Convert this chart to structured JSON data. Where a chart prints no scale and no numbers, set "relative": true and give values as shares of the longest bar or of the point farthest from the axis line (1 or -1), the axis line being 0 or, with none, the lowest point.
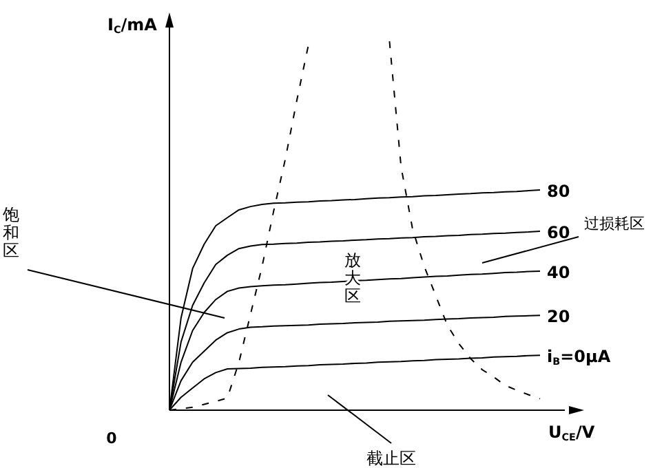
{
  "chart_data": {
    "type": "line",
    "relative": true,
    "xlabel": "U$_{CE}$/V",
    "ylabel": "I$_{C}$/mA",
    "grid": false,
    "categories": [
      null,
      null,
      null,
      null,
      null,
      null,
      null,
      null,
      null,
      null,
      null,
      null,
      null,
      null,
      null,
      null,
      null,
      null,
      null,
      null,
      null,
      null,
      null,
      null,
      null,
      null,
      null,
      null,
      null,
      null,
      null,
      null,
      null
    ],
    "series": [
      {
        "name": "80",
        "color": "#000000",
        "line_style": "solid",
        "values": [
          0,
          0.25,
          0.384,
          0.45,
          0.5,
          0.522,
          0.543,
          0.552,
          0.558,
          0.561,
          0.562,
          0.564,
          0.565,
          0.567,
          0.568,
          0.57,
          0.571,
          0.573,
          0.575,
          0.576,
          0.578,
          0.579,
          0.581,
          0.582,
          0.584,
          0.586,
          0.587,
          0.589,
          0.59,
          0.592,
          0.593,
          0.595,
          0.597
        ]
      },
      {
        "name": "60",
        "color": "#000000",
        "line_style": "solid",
        "values": [
          0,
          0.185,
          0.284,
          0.345,
          0.395,
          0.42,
          0.438,
          0.445,
          0.449,
          0.45,
          0.452,
          0.453,
          0.455,
          0.456,
          0.458,
          0.459,
          0.461,
          0.462,
          0.464,
          0.465,
          0.467,
          0.468,
          0.47,
          0.471,
          0.473,
          0.474,
          0.476,
          0.477,
          0.479,
          0.48,
          0.482,
          0.483,
          0.485
        ]
      },
      {
        "name": "40",
        "color": "#000000",
        "line_style": "solid",
        "values": [
          0,
          0.13,
          0.216,
          0.265,
          0.3,
          0.322,
          0.331,
          0.335,
          0.337,
          0.339,
          0.34,
          0.342,
          0.344,
          0.346,
          0.347,
          0.349,
          0.351,
          0.352,
          0.354,
          0.356,
          0.357,
          0.359,
          0.361,
          0.363,
          0.364,
          0.366,
          0.368,
          0.369,
          0.371,
          0.373,
          0.374,
          0.376,
          0.377
        ]
      },
      {
        "name": "20",
        "color": "#000000",
        "line_style": "solid",
        "values": [
          0,
          0.08,
          0.13,
          0.16,
          0.19,
          0.21,
          0.22,
          0.225,
          0.226,
          0.228,
          0.229,
          0.23,
          0.231,
          0.233,
          0.234,
          0.235,
          0.237,
          0.238,
          0.239,
          0.241,
          0.242,
          0.243,
          0.244,
          0.246,
          0.247,
          0.248,
          0.25,
          0.251,
          0.252,
          0.254,
          0.255,
          0.256,
          0.257
        ]
      },
      {
        "name": "i$_{B}$=0μA",
        "color": "#000000",
        "line_style": "solid",
        "values": [
          0,
          0.035,
          0.06,
          0.085,
          0.102,
          0.112,
          0.113,
          0.114,
          0.116,
          0.117,
          0.118,
          0.12,
          0.121,
          0.123,
          0.124,
          0.125,
          0.127,
          0.128,
          0.13,
          0.131,
          0.132,
          0.134,
          0.135,
          0.137,
          0.138,
          0.139,
          0.141,
          0.142,
          0.144,
          0.145,
          0.146,
          0.148,
          0.149
        ]
      },
      {
        "color": "#000000",
        "line_style": "dashed",
        "values": [
          0,
          0.004,
          0.008,
          0.016,
          0.024,
          0.033,
          0.13,
          0.26,
          0.39,
          0.54,
          0.68,
          0.84,
          0.99,
          null,
          null,
          null,
          null,
          null,
          null,
          null,
          null,
          null,
          null,
          null,
          null,
          null,
          null,
          null,
          null,
          null,
          null,
          null,
          null
        ]
      },
      {
        "color": "#000000",
        "line_style": "dashed",
        "values": [
          null,
          null,
          null,
          null,
          null,
          null,
          null,
          null,
          null,
          null,
          null,
          null,
          null,
          null,
          null,
          null,
          null,
          null,
          null,
          1,
          0.66,
          0.49,
          0.39,
          0.31,
          0.23,
          0.18,
          0.14,
          0.11,
          0.09,
          0.067,
          0.054,
          0.042,
          0.031
        ]
      }
    ],
    "annotations": [
      "饱和区",
      "放大区",
      "过损耗区",
      "截止区",
      "0"
    ]
  }
}
